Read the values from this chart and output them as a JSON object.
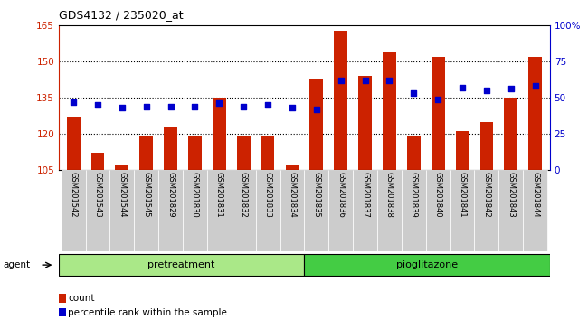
{
  "title": "GDS4132 / 235020_at",
  "samples": [
    "GSM201542",
    "GSM201543",
    "GSM201544",
    "GSM201545",
    "GSM201829",
    "GSM201830",
    "GSM201831",
    "GSM201832",
    "GSM201833",
    "GSM201834",
    "GSM201835",
    "GSM201836",
    "GSM201837",
    "GSM201838",
    "GSM201839",
    "GSM201840",
    "GSM201841",
    "GSM201842",
    "GSM201843",
    "GSM201844"
  ],
  "counts": [
    127,
    112,
    107,
    119,
    123,
    119,
    135,
    119,
    119,
    107,
    143,
    163,
    144,
    154,
    119,
    152,
    121,
    125,
    135,
    152
  ],
  "percentiles": [
    47,
    45,
    43,
    44,
    44,
    44,
    46,
    44,
    45,
    43,
    42,
    62,
    62,
    62,
    53,
    49,
    57,
    55,
    56,
    58
  ],
  "ylim_left": [
    105,
    165
  ],
  "ylim_right": [
    0,
    100
  ],
  "yticks_left": [
    105,
    120,
    135,
    150,
    165
  ],
  "yticks_right": [
    0,
    25,
    50,
    75,
    100
  ],
  "bar_color": "#cc2200",
  "dot_color": "#0000cc",
  "pretreatment_color": "#aae888",
  "pioglitazone_color": "#44cc44",
  "tick_bg_color": "#cccccc",
  "pretreatment_label": "pretreatment",
  "pioglitazone_label": "pioglitazone",
  "pretreatment_count": 10,
  "agent_label": "agent",
  "legend_count": "count",
  "legend_percentile": "percentile rank within the sample"
}
